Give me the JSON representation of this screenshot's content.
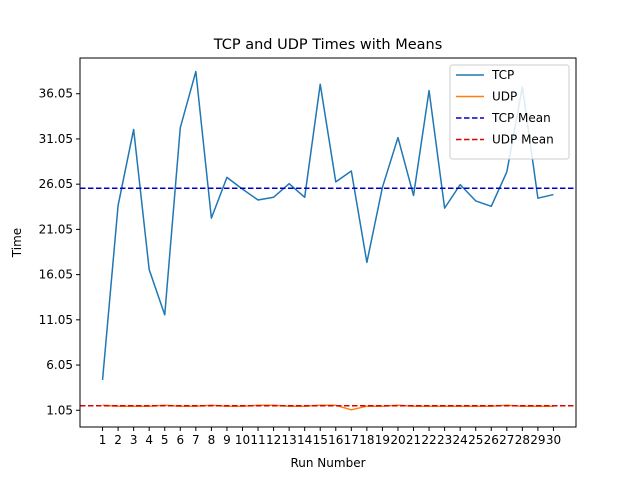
{
  "chart_data": {
    "type": "line",
    "title": "TCP and UDP Times with Means",
    "xlabel": "Run Number",
    "ylabel": "Time",
    "x": [
      1,
      2,
      3,
      4,
      5,
      6,
      7,
      8,
      9,
      10,
      11,
      12,
      13,
      14,
      15,
      16,
      17,
      18,
      19,
      20,
      21,
      22,
      23,
      24,
      25,
      26,
      27,
      28,
      29,
      30
    ],
    "yticks": [
      1.05,
      6.05,
      11.05,
      16.05,
      21.05,
      26.05,
      31.05,
      36.05
    ],
    "ylim": [
      -0.8,
      40.0
    ],
    "xlim": [
      -0.45,
      31.45
    ],
    "grid": false,
    "legend_position": "top-right",
    "series": [
      {
        "name": "TCP",
        "color": "#1f77b4",
        "style": "solid",
        "values": [
          4.4,
          23.7,
          32.1,
          16.6,
          11.6,
          32.3,
          38.5,
          22.3,
          26.8,
          25.5,
          24.3,
          24.6,
          26.1,
          24.6,
          37.1,
          26.3,
          27.5,
          17.4,
          25.7,
          31.2,
          24.8,
          36.4,
          23.4,
          26.0,
          24.2,
          23.6,
          27.4,
          36.8,
          24.5,
          24.9
        ]
      },
      {
        "name": "UDP",
        "color": "#ff7f0e",
        "style": "solid",
        "values": [
          1.6,
          1.5,
          1.5,
          1.5,
          1.6,
          1.5,
          1.5,
          1.6,
          1.5,
          1.5,
          1.6,
          1.6,
          1.5,
          1.5,
          1.6,
          1.6,
          1.1,
          1.5,
          1.5,
          1.6,
          1.5,
          1.5,
          1.5,
          1.5,
          1.5,
          1.5,
          1.6,
          1.5,
          1.5,
          1.5
        ]
      },
      {
        "name": "TCP Mean",
        "color": "#0000cc",
        "style": "dashed",
        "constant": 25.6
      },
      {
        "name": "UDP Mean",
        "color": "#dd0000",
        "style": "dashed",
        "constant": 1.55
      }
    ]
  }
}
